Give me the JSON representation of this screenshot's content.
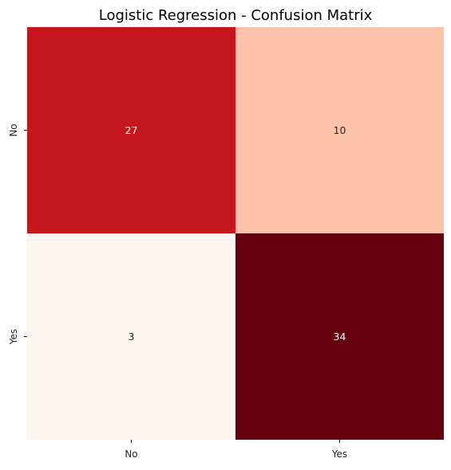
{
  "chart_data": {
    "type": "heatmap",
    "title": "Logistic Regression - Confusion Matrix",
    "xlabel": "",
    "ylabel": "",
    "x_categories": [
      "No",
      "Yes"
    ],
    "y_categories": [
      "No",
      "Yes"
    ],
    "values": [
      [
        27,
        10
      ],
      [
        3,
        34
      ]
    ],
    "colormap": "Reds",
    "color_range": [
      3,
      34
    ],
    "colorbar": false,
    "annotations": true,
    "colors": {
      "low": "#fff5f0",
      "high": "#67000d",
      "text_light": "#ffffff",
      "text_dark": "#262626"
    }
  }
}
